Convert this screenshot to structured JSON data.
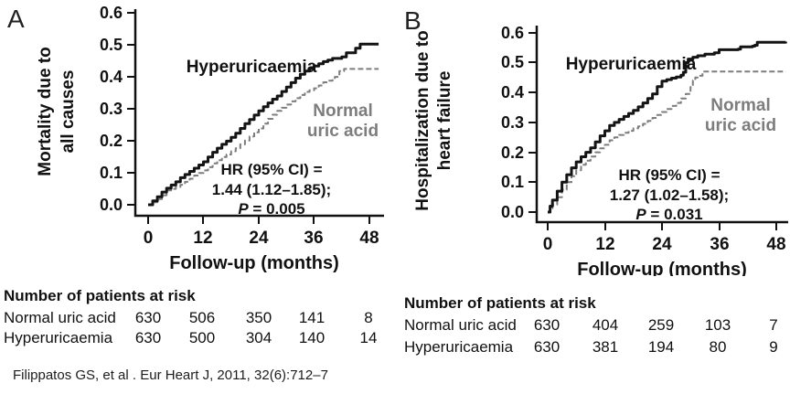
{
  "figure": {
    "citation": "Filippatos GS, et al . Eur Heart J, 2011, 32(6):712–7"
  },
  "chart_data": [
    {
      "panel": "A",
      "type": "line",
      "subtype": "kaplan-meier-step",
      "ylabel_lines": [
        "Mortality due to",
        "all causes"
      ],
      "xlabel": "Follow-up (months)",
      "x_ticks": [
        "0",
        "12",
        "24",
        "36",
        "48"
      ],
      "y_ticks": [
        "0.0",
        "0.1",
        "0.2",
        "0.3",
        "0.4",
        "0.5",
        "0.6"
      ],
      "xlim": [
        0,
        48
      ],
      "ylim": [
        0,
        0.6
      ],
      "grid": "off",
      "annotation": {
        "line1": "HR (95% CI) =",
        "line2": "1.44 (1.12–1.85);",
        "p_label": "P",
        "p_rest": " = 0.005"
      },
      "series": [
        {
          "name": "Hyperuricaemia",
          "color": "#141414",
          "style": "solid",
          "points": [
            [
              0,
              0
            ],
            [
              1,
              0.012
            ],
            [
              2,
              0.025
            ],
            [
              3,
              0.04
            ],
            [
              4,
              0.052
            ],
            [
              5,
              0.062
            ],
            [
              6,
              0.072
            ],
            [
              7,
              0.085
            ],
            [
              8,
              0.095
            ],
            [
              9,
              0.105
            ],
            [
              10,
              0.115
            ],
            [
              11,
              0.125
            ],
            [
              12,
              0.135
            ],
            [
              13,
              0.15
            ],
            [
              14,
              0.165
            ],
            [
              15,
              0.178
            ],
            [
              16,
              0.19
            ],
            [
              17,
              0.2
            ],
            [
              18,
              0.212
            ],
            [
              19,
              0.225
            ],
            [
              20,
              0.24
            ],
            [
              21,
              0.255
            ],
            [
              22,
              0.268
            ],
            [
              23,
              0.282
            ],
            [
              24,
              0.295
            ],
            [
              25,
              0.308
            ],
            [
              26,
              0.32
            ],
            [
              27,
              0.332
            ],
            [
              28,
              0.342
            ],
            [
              29,
              0.356
            ],
            [
              30,
              0.37
            ],
            [
              31,
              0.384
            ],
            [
              32,
              0.398
            ],
            [
              33,
              0.41
            ],
            [
              34,
              0.42
            ],
            [
              35,
              0.428
            ],
            [
              36,
              0.436
            ],
            [
              37,
              0.443
            ],
            [
              38,
              0.45
            ],
            [
              39,
              0.455
            ],
            [
              40,
              0.46
            ],
            [
              42,
              0.465
            ],
            [
              43,
              0.478
            ],
            [
              44.5,
              0.478
            ],
            [
              45,
              0.492
            ],
            [
              46,
              0.505
            ],
            [
              50,
              0.505
            ]
          ]
        },
        {
          "name": "Normal uric acid",
          "label_lines": [
            "Normal",
            "uric acid"
          ],
          "color": "#7d7d7d",
          "style": "dashed",
          "points": [
            [
              0,
              0
            ],
            [
              1,
              0.008
            ],
            [
              2,
              0.018
            ],
            [
              3,
              0.03
            ],
            [
              4,
              0.045
            ],
            [
              5,
              0.05
            ],
            [
              6,
              0.056
            ],
            [
              7,
              0.063
            ],
            [
              8,
              0.072
            ],
            [
              9,
              0.082
            ],
            [
              10,
              0.092
            ],
            [
              11,
              0.1
            ],
            [
              12,
              0.108
            ],
            [
              13,
              0.118
            ],
            [
              14,
              0.13
            ],
            [
              15,
              0.14
            ],
            [
              16,
              0.15
            ],
            [
              17,
              0.158
            ],
            [
              18,
              0.168
            ],
            [
              19,
              0.178
            ],
            [
              20,
              0.19
            ],
            [
              21,
              0.202
            ],
            [
              22,
              0.215
            ],
            [
              23,
              0.228
            ],
            [
              24,
              0.24
            ],
            [
              25,
              0.255
            ],
            [
              26,
              0.27
            ],
            [
              27,
              0.283
            ],
            [
              28,
              0.295
            ],
            [
              29,
              0.305
            ],
            [
              30,
              0.315
            ],
            [
              31,
              0.325
            ],
            [
              32,
              0.335
            ],
            [
              33,
              0.345
            ],
            [
              34,
              0.355
            ],
            [
              35,
              0.36
            ],
            [
              36,
              0.366
            ],
            [
              37,
              0.375
            ],
            [
              38,
              0.385
            ],
            [
              39,
              0.39
            ],
            [
              40,
              0.396
            ],
            [
              40.5,
              0.402
            ],
            [
              41.5,
              0.42
            ],
            [
              42.5,
              0.427
            ],
            [
              50,
              0.427
            ]
          ]
        }
      ],
      "risk_table": {
        "title": "Number of patients at risk",
        "rows": [
          {
            "label": "Normal uric acid",
            "values": [
              "630",
              "506",
              "350",
              "141",
              "8"
            ]
          },
          {
            "label": "Hyperuricaemia",
            "values": [
              "630",
              "500",
              "304",
              "140",
              "14"
            ]
          }
        ]
      }
    },
    {
      "panel": "B",
      "type": "line",
      "subtype": "kaplan-meier-step",
      "ylabel_lines": [
        "Hospitalization due to",
        "heart failure"
      ],
      "xlabel": "Follow-up (months)",
      "x_ticks": [
        "0",
        "12",
        "24",
        "36",
        "48"
      ],
      "y_ticks": [
        "0.0",
        "0.1",
        "0.2",
        "0.3",
        "0.4",
        "0.5",
        "0.6"
      ],
      "xlim": [
        0,
        48
      ],
      "ylim": [
        0,
        0.6
      ],
      "grid": "off",
      "annotation": {
        "line1": "HR (95% CI) =",
        "line2": "1.27 (1.02–1.58);",
        "p_label": "P",
        "p_rest": " = 0.031"
      },
      "series": [
        {
          "name": "Hyperuricaemia",
          "color": "#141414",
          "style": "solid",
          "points": [
            [
              0,
              0
            ],
            [
              0.5,
              0.02
            ],
            [
              1,
              0.04
            ],
            [
              2,
              0.07
            ],
            [
              3,
              0.1
            ],
            [
              4,
              0.125
            ],
            [
              5,
              0.148
            ],
            [
              6,
              0.168
            ],
            [
              7,
              0.185
            ],
            [
              8,
              0.2
            ],
            [
              9,
              0.215
            ],
            [
              10,
              0.235
            ],
            [
              11,
              0.255
            ],
            [
              12,
              0.272
            ],
            [
              13,
              0.29
            ],
            [
              14,
              0.3
            ],
            [
              15,
              0.31
            ],
            [
              16,
              0.32
            ],
            [
              17,
              0.33
            ],
            [
              18,
              0.34
            ],
            [
              19,
              0.352
            ],
            [
              20,
              0.365
            ],
            [
              21,
              0.38
            ],
            [
              22,
              0.395
            ],
            [
              23,
              0.42
            ],
            [
              24,
              0.438
            ],
            [
              25,
              0.443
            ],
            [
              26,
              0.448
            ],
            [
              27,
              0.452
            ],
            [
              28,
              0.458
            ],
            [
              28.5,
              0.468
            ],
            [
              29,
              0.5
            ],
            [
              29.5,
              0.512
            ],
            [
              30.5,
              0.518
            ],
            [
              31.5,
              0.523
            ],
            [
              33,
              0.528
            ],
            [
              35,
              0.533
            ],
            [
              36,
              0.543
            ],
            [
              40,
              0.545
            ],
            [
              40.5,
              0.553
            ],
            [
              43,
              0.555
            ],
            [
              43.5,
              0.558
            ],
            [
              44,
              0.568
            ],
            [
              50,
              0.57
            ]
          ]
        },
        {
          "name": "Normal uric acid",
          "label_lines": [
            "Normal",
            "uric acid"
          ],
          "color": "#7d7d7d",
          "style": "dashed",
          "points": [
            [
              0,
              0
            ],
            [
              0.5,
              0.012
            ],
            [
              1,
              0.025
            ],
            [
              2,
              0.05
            ],
            [
              3,
              0.075
            ],
            [
              4,
              0.1
            ],
            [
              5,
              0.12
            ],
            [
              6,
              0.14
            ],
            [
              7,
              0.158
            ],
            [
              8,
              0.172
            ],
            [
              9,
              0.186
            ],
            [
              10,
              0.2
            ],
            [
              11,
              0.213
            ],
            [
              12,
              0.225
            ],
            [
              13,
              0.24
            ],
            [
              14,
              0.25
            ],
            [
              15,
              0.258
            ],
            [
              16,
              0.265
            ],
            [
              17,
              0.272
            ],
            [
              18,
              0.28
            ],
            [
              19,
              0.287
            ],
            [
              20,
              0.295
            ],
            [
              21,
              0.305
            ],
            [
              22,
              0.315
            ],
            [
              23,
              0.325
            ],
            [
              24,
              0.335
            ],
            [
              25,
              0.345
            ],
            [
              26,
              0.355
            ],
            [
              27,
              0.365
            ],
            [
              28,
              0.38
            ],
            [
              29,
              0.395
            ],
            [
              30,
              0.418
            ],
            [
              30.5,
              0.44
            ],
            [
              31,
              0.45
            ],
            [
              31.5,
              0.456
            ],
            [
              32.5,
              0.47
            ],
            [
              50,
              0.47
            ]
          ]
        }
      ],
      "risk_table": {
        "title": "Number of patients at risk",
        "rows": [
          {
            "label": "Normal uric acid",
            "values": [
              "630",
              "404",
              "259",
              "103",
              "7"
            ]
          },
          {
            "label": "Hyperuricaemia",
            "values": [
              "630",
              "381",
              "194",
              "80",
              "9"
            ]
          }
        ]
      }
    }
  ]
}
